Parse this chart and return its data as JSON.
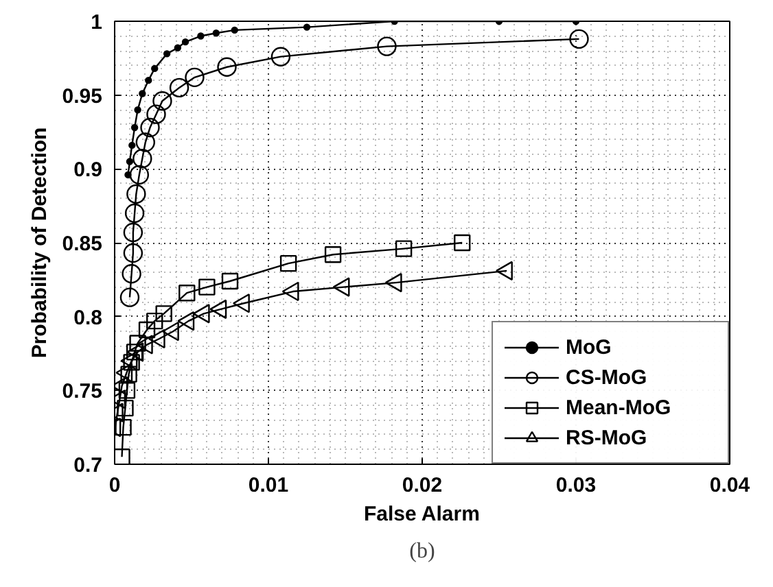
{
  "chart_data": {
    "type": "line",
    "xlabel": "False Alarm",
    "ylabel": "Probability of Detection",
    "annotations": [
      "(b)"
    ],
    "xlim": [
      0,
      0.04
    ],
    "xticks": [
      0,
      0.01,
      0.02,
      0.03,
      0.04
    ],
    "ylim": [
      0.7,
      1
    ],
    "yticks": [
      0.7,
      0.75,
      0.8,
      0.85,
      0.9,
      0.95,
      1
    ],
    "grid": true,
    "legend": "bottom right",
    "line_style": "solid",
    "series": [
      {
        "name": "MoG",
        "color": "#000000",
        "marker": "dot",
        "x": [
          0.00087,
          0.00098,
          0.00113,
          0.0013,
          0.0015,
          0.0018,
          0.0022,
          0.0026,
          0.0034,
          0.0041,
          0.0046,
          0.0056,
          0.0066,
          0.0078,
          0.0125,
          0.0182,
          0.025,
          0.03
        ],
        "values": [
          0.896,
          0.905,
          0.916,
          0.928,
          0.94,
          0.951,
          0.96,
          0.968,
          0.978,
          0.982,
          0.986,
          0.99,
          0.992,
          0.994,
          0.996,
          1.0,
          1.0,
          1.0
        ]
      },
      {
        "name": "CS-MoG",
        "color": "#000000",
        "marker": "circle",
        "x": [
          0.00098,
          0.0011,
          0.0012,
          0.0012,
          0.0013,
          0.0014,
          0.0016,
          0.0018,
          0.002,
          0.0023,
          0.0027,
          0.0031,
          0.0042,
          0.0052,
          0.0073,
          0.0108,
          0.0177,
          0.0302
        ],
        "values": [
          0.813,
          0.829,
          0.843,
          0.857,
          0.87,
          0.883,
          0.896,
          0.907,
          0.918,
          0.928,
          0.937,
          0.946,
          0.955,
          0.962,
          0.969,
          0.976,
          0.983,
          0.988
        ]
      },
      {
        "name": "Mean-MoG",
        "color": "#000000",
        "marker": "square",
        "x": [
          0.00047,
          0.00056,
          0.00069,
          0.0008,
          0.00092,
          0.0011,
          0.0013,
          0.0015,
          0.0021,
          0.0026,
          0.0032,
          0.0047,
          0.006,
          0.0075,
          0.0113,
          0.0142,
          0.0188,
          0.0226
        ],
        "values": [
          0.705,
          0.725,
          0.738,
          0.75,
          0.761,
          0.769,
          0.776,
          0.782,
          0.791,
          0.797,
          0.802,
          0.816,
          0.82,
          0.824,
          0.836,
          0.842,
          0.846,
          0.85
        ]
      },
      {
        "name": "RS-MoG",
        "color": "#000000",
        "marker": "triangle",
        "x": [
          3e-05,
          0.00018,
          0.00033,
          0.00047,
          0.00078,
          0.0011,
          0.0015,
          0.0021,
          0.0029,
          0.0038,
          0.0048,
          0.0058,
          0.0069,
          0.0084,
          0.0116,
          0.0149,
          0.0183,
          0.0255
        ],
        "values": [
          0.725,
          0.735,
          0.744,
          0.753,
          0.762,
          0.77,
          0.776,
          0.781,
          0.785,
          0.79,
          0.797,
          0.802,
          0.805,
          0.809,
          0.817,
          0.82,
          0.823,
          0.831
        ]
      }
    ]
  }
}
